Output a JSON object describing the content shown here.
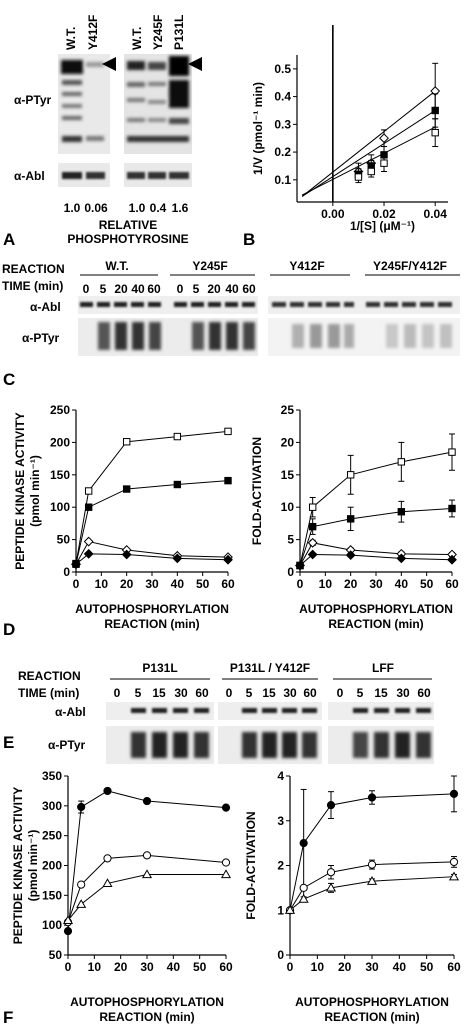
{
  "panel_letters": {
    "A": "A",
    "B": "B",
    "C": "C",
    "D": "D",
    "E": "E",
    "F": "F"
  },
  "panelA": {
    "lanes": [
      "W.T.",
      "Y412F",
      "W.T.",
      "Y245F",
      "P131L"
    ],
    "row_labels": {
      "ptyr": "α-PTyr",
      "abl": "α-Abl"
    },
    "values": [
      "1.0",
      "0.06",
      "1.0",
      "0.4",
      "1.6"
    ],
    "caption": {
      "line1": "RELATIVE",
      "line2": "PHOSPHOTYROSINE"
    }
  },
  "gel_C": {
    "reaction_label": "REACTION",
    "time_label": "TIME (min)",
    "groups": [
      "W.T.",
      "Y245F",
      "Y412F",
      "Y245F/Y412F"
    ],
    "times": [
      "0",
      "5",
      "20",
      "40",
      "60"
    ],
    "row_labels": {
      "abl": "α-Abl",
      "ptyr": "α-PTyr"
    }
  },
  "gel_E": {
    "reaction_label": "REACTION",
    "time_label": "TIME (min)",
    "groups": [
      "P131L",
      "P131L / Y412F",
      "LFF"
    ],
    "times": [
      "0",
      "5",
      "15",
      "30",
      "60"
    ],
    "row_labels": {
      "abl": "α-Abl",
      "ptyr": "α-PTyr"
    }
  },
  "chart_data": [
    {
      "id": "B",
      "type": "line",
      "ylabel": "1/V  (pmol⁻¹ min)",
      "xlabel": "1/[S]  (μM⁻¹)",
      "xlim": [
        -0.014,
        0.045
      ],
      "ylim": [
        0.02,
        0.55
      ],
      "x_ticks": [
        "0.00",
        "0.02",
        "0.04"
      ],
      "x_tick_values": [
        0,
        0.02,
        0.04
      ],
      "y_ticks": [
        "0.1",
        "0.2",
        "0.3",
        "0.4",
        "0.5"
      ],
      "y_tick_values": [
        0.1,
        0.2,
        0.3,
        0.4,
        0.5
      ],
      "x": [
        0.01,
        0.015,
        0.02,
        0.04
      ],
      "series": [
        {
          "marker": "diamond-open",
          "y": [
            0.13,
            0.16,
            0.25,
            0.42
          ],
          "err": [
            0.03,
            0.03,
            0.03,
            0.1
          ],
          "line": [
            [
              -0.012,
              0.04
            ],
            [
              0.04,
              0.42
            ]
          ]
        },
        {
          "marker": "square-filled",
          "y": [
            0.12,
            0.15,
            0.19,
            0.35
          ],
          "err": [
            0.02,
            0.02,
            0.03,
            0.06
          ],
          "line": [
            [
              -0.012,
              0.04
            ],
            [
              0.04,
              0.35
            ]
          ]
        },
        {
          "marker": "square-open",
          "y": [
            0.11,
            0.13,
            0.16,
            0.27
          ],
          "err": [
            0.02,
            0.02,
            0.03,
            0.05
          ],
          "line": [
            [
              -0.012,
              0.045
            ],
            [
              0.04,
              0.29
            ]
          ]
        }
      ]
    },
    {
      "id": "D-left",
      "type": "line",
      "ylabel_line1": "PEPTIDE KINASE ACTIVITY",
      "ylabel_line2": "(pmol min⁻¹)",
      "xlabel_line1": "AUTOPHOSPHORYLATION",
      "xlabel_line2": "REACTION  (min)",
      "xlim": [
        0,
        60
      ],
      "ylim": [
        0,
        250
      ],
      "x_ticks": [
        "0",
        "10",
        "20",
        "30",
        "40",
        "50",
        "60"
      ],
      "x_tick_values": [
        0,
        10,
        20,
        30,
        40,
        50,
        60
      ],
      "y_ticks": [
        "0",
        "50",
        "100",
        "150",
        "200",
        "250"
      ],
      "y_tick_values": [
        0,
        50,
        100,
        150,
        200,
        250
      ],
      "x": [
        0,
        5,
        20,
        40,
        60
      ],
      "series": [
        {
          "marker": "square-open",
          "y": [
            13,
            125,
            201,
            209,
            217
          ],
          "err": [
            0,
            3,
            3,
            3,
            3
          ]
        },
        {
          "marker": "square-filled",
          "y": [
            12,
            100,
            128,
            135,
            141
          ],
          "err": [
            0,
            0,
            0,
            0,
            0
          ]
        },
        {
          "marker": "diamond-open",
          "y": [
            12,
            47,
            34,
            25,
            23
          ],
          "err": [
            0,
            0,
            0,
            0,
            0
          ]
        },
        {
          "marker": "diamond-filled",
          "y": [
            12,
            28,
            27,
            21,
            19
          ],
          "err": [
            0,
            0,
            0,
            0,
            0
          ]
        }
      ]
    },
    {
      "id": "D-right",
      "type": "line",
      "ylabel": "FOLD-ACTIVATION",
      "xlabel_line1": "AUTOPHOSPHORYLATION",
      "xlabel_line2": "REACTION  (min)",
      "xlim": [
        0,
        60
      ],
      "ylim": [
        0,
        25
      ],
      "x_ticks": [
        "0",
        "10",
        "20",
        "30",
        "40",
        "50",
        "60"
      ],
      "x_tick_values": [
        0,
        10,
        20,
        30,
        40,
        50,
        60
      ],
      "y_ticks": [
        "0",
        "5",
        "10",
        "15",
        "20",
        "25"
      ],
      "y_tick_values": [
        0,
        5,
        10,
        15,
        20,
        25
      ],
      "x": [
        0,
        5,
        20,
        40,
        60
      ],
      "series": [
        {
          "marker": "square-open",
          "y": [
            1,
            10,
            15,
            17,
            18.5
          ],
          "err": [
            0,
            1.5,
            3,
            3,
            2.8
          ]
        },
        {
          "marker": "square-filled",
          "y": [
            1,
            7,
            8.2,
            9.3,
            9.8
          ],
          "err": [
            0,
            1.2,
            1.8,
            1.6,
            1.3
          ]
        },
        {
          "marker": "diamond-open",
          "y": [
            1,
            4.5,
            3.4,
            2.8,
            2.7
          ],
          "err": [
            0,
            0.4,
            0.3,
            0.3,
            0.3
          ]
        },
        {
          "marker": "diamond-filled",
          "y": [
            1,
            2.7,
            2.6,
            2.1,
            1.9
          ],
          "err": [
            0,
            0.2,
            0.2,
            0.2,
            0.2
          ]
        }
      ]
    },
    {
      "id": "F-left",
      "type": "line",
      "ylabel_line1": "PEPTIDE KINASE ACTIVITY",
      "ylabel_line2": "(pmol min⁻¹)",
      "xlabel_line1": "AUTOPHOSPHORYLATION",
      "xlabel_line2": "REACTION  (min)",
      "xlim": [
        0,
        60
      ],
      "ylim": [
        50,
        350
      ],
      "x_ticks": [
        "0",
        "10",
        "20",
        "30",
        "40",
        "50",
        "60"
      ],
      "x_tick_values": [
        0,
        10,
        20,
        30,
        40,
        50,
        60
      ],
      "y_ticks": [
        "50",
        "100",
        "150",
        "200",
        "250",
        "300",
        "350"
      ],
      "y_tick_values": [
        50,
        100,
        150,
        200,
        250,
        300,
        350
      ],
      "x": [
        0,
        5,
        15,
        30,
        60
      ],
      "series": [
        {
          "marker": "circle-filled",
          "y": [
            90,
            298,
            325,
            308,
            297
          ],
          "err": [
            0,
            10,
            0,
            0,
            0
          ]
        },
        {
          "marker": "circle-open",
          "y": [
            105,
            168,
            212,
            217,
            205
          ],
          "err": [
            0,
            0,
            0,
            0,
            0
          ]
        },
        {
          "marker": "triangle-open",
          "y": [
            108,
            135,
            170,
            185,
            185
          ],
          "err": [
            0,
            0,
            0,
            0,
            0
          ]
        }
      ]
    },
    {
      "id": "F-right",
      "type": "line",
      "ylabel": "FOLD-ACTIVATION",
      "xlabel_line1": "AUTOPHOSPHORYLATION",
      "xlabel_line2": "REACTION  (min)",
      "xlim": [
        0,
        60
      ],
      "ylim": [
        0,
        4
      ],
      "x_ticks": [
        "0",
        "10",
        "20",
        "30",
        "40",
        "50",
        "60"
      ],
      "x_tick_values": [
        0,
        10,
        20,
        30,
        40,
        50,
        60
      ],
      "y_ticks": [
        "0",
        "1",
        "2",
        "3",
        "4"
      ],
      "y_tick_values": [
        0,
        1,
        2,
        3,
        4
      ],
      "x": [
        0,
        5,
        15,
        30,
        60
      ],
      "series": [
        {
          "marker": "circle-filled",
          "y": [
            1,
            2.5,
            3.35,
            3.52,
            3.6
          ],
          "err": [
            0,
            1.2,
            0.3,
            0.15,
            0.4
          ]
        },
        {
          "marker": "circle-open",
          "y": [
            1,
            1.5,
            1.85,
            2.02,
            2.08
          ],
          "err": [
            0,
            0,
            0.15,
            0.1,
            0.12
          ]
        },
        {
          "marker": "triangle-open",
          "y": [
            1,
            1.25,
            1.5,
            1.65,
            1.75
          ],
          "err": [
            0,
            0,
            0.1,
            0.05,
            0.05
          ]
        }
      ]
    }
  ]
}
